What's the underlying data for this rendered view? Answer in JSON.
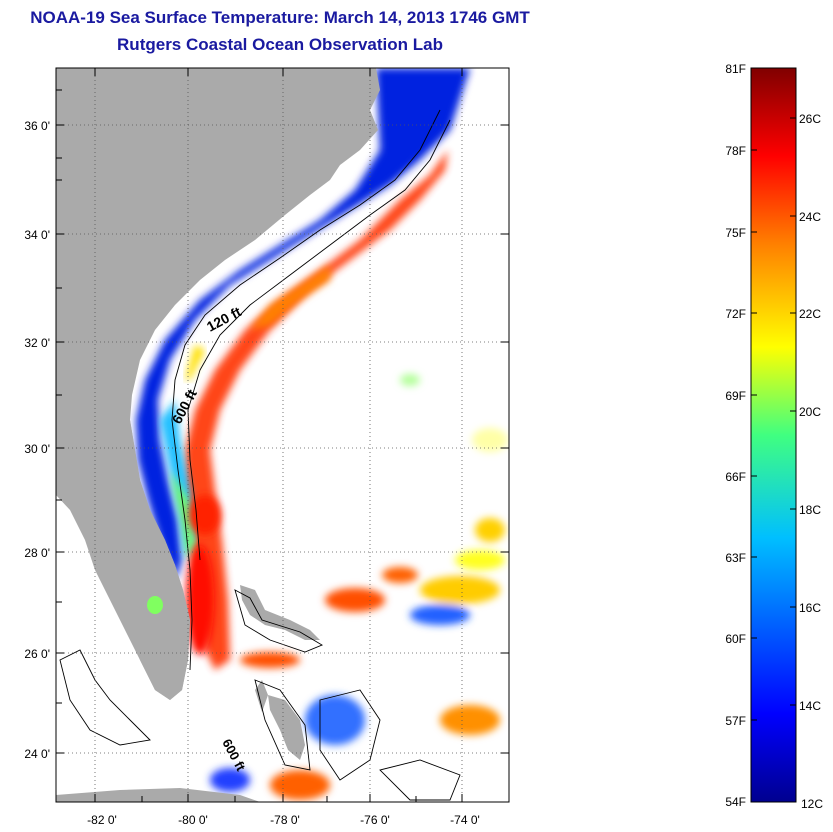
{
  "title": "NOAA-19 Sea Surface Temperature:  March 14, 2013 1746 GMT",
  "subtitle": "Rutgers Coastal Ocean Observation Lab",
  "map": {
    "lon_ticks": [
      "-82 0'",
      "-80 0'",
      "-78 0'",
      "-76 0'",
      "-74 0'"
    ],
    "lat_ticks": [
      "36 0'",
      "34 0'",
      "32 0'",
      "30 0'",
      "28 0'",
      "26 0'",
      "24 0'"
    ],
    "contour_labels": [
      "120 ft",
      "600 ft",
      "600 ft"
    ]
  },
  "colorbar": {
    "fahrenheit_labels": [
      "81F",
      "78F",
      "75F",
      "72F",
      "69F",
      "66F",
      "63F",
      "60F",
      "57F",
      "54F"
    ],
    "celsius_labels": [
      "26C",
      "24C",
      "22C",
      "20C",
      "18C",
      "16C",
      "14C",
      "12C"
    ],
    "colors": [
      "#00008f",
      "#0000ff",
      "#00bfff",
      "#40ff80",
      "#ffff00",
      "#ff8000",
      "#ff0000",
      "#800000"
    ]
  },
  "colors": {
    "title": "#1a1aa0",
    "land": "#aaaaaa",
    "cloud": "#ffffff"
  }
}
